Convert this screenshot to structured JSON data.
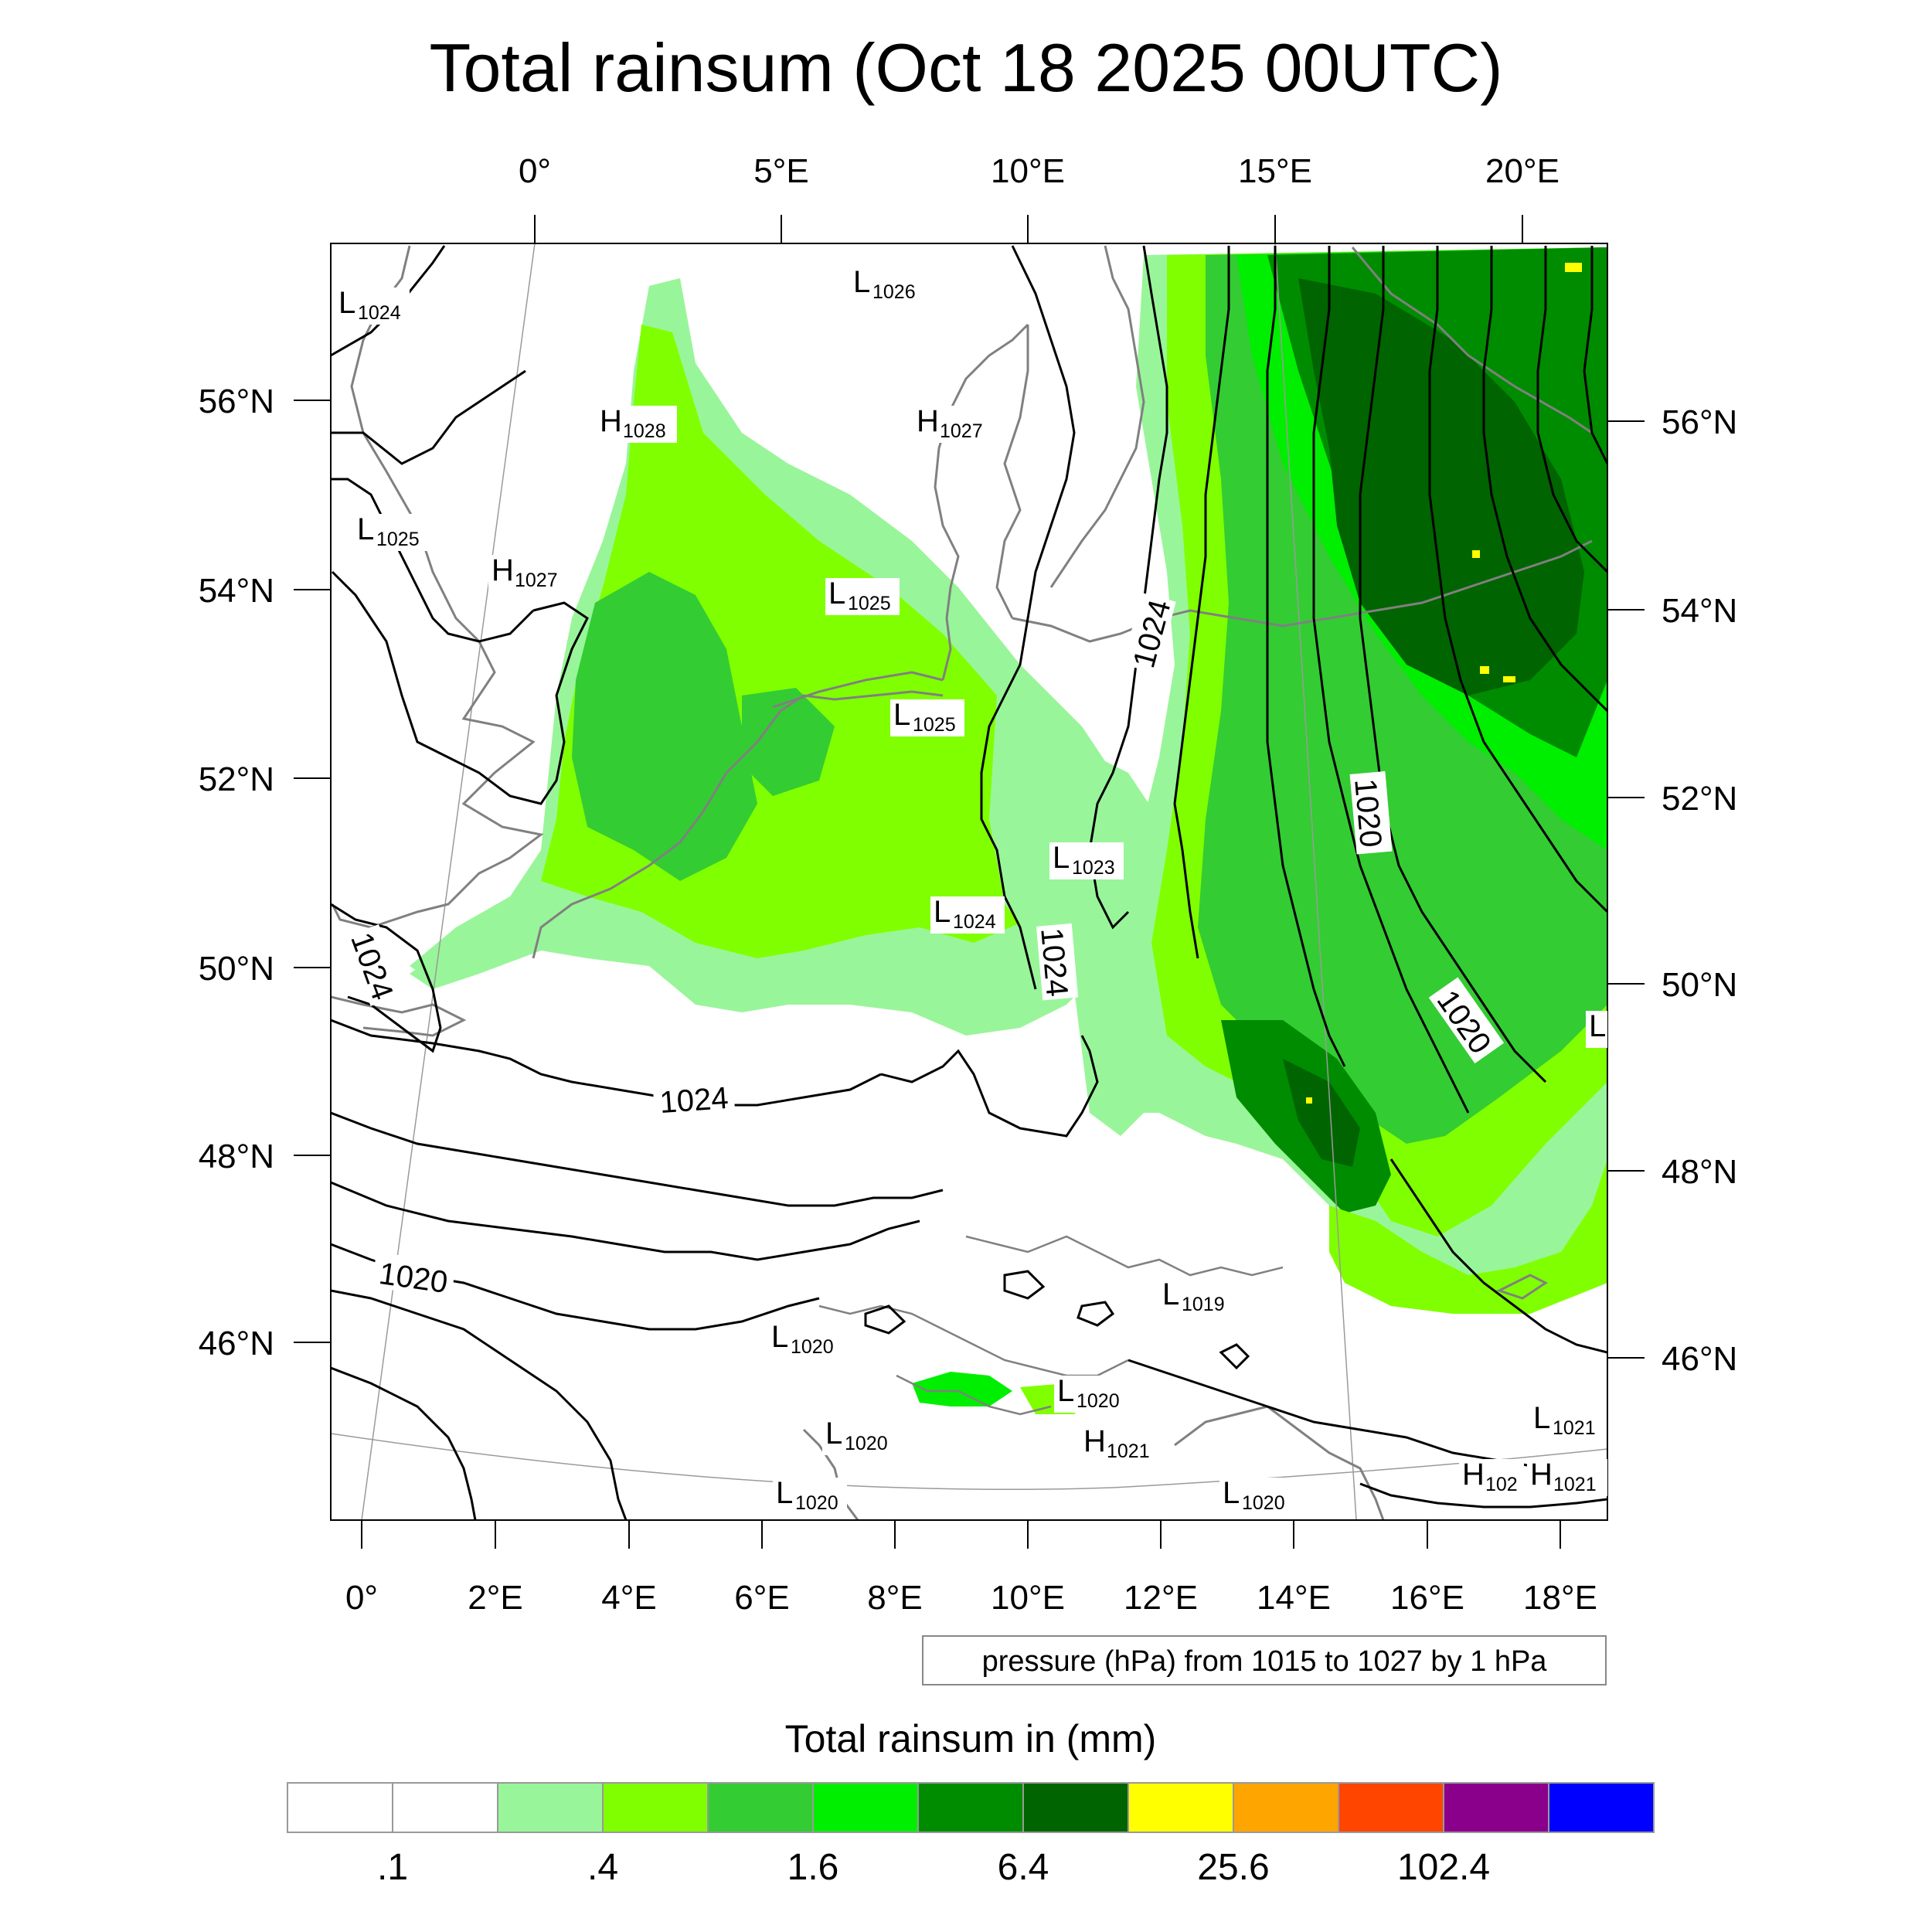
{
  "title": "Total rainsum (Oct 18 2025 00UTC)",
  "colors": {
    "coast": "#808080",
    "isobar": "#000000",
    "rain_bins": [
      "#ffffff",
      "#ffffff",
      "#99f599",
      "#80ff00",
      "#33cc33",
      "#00ee00",
      "#008c00",
      "#006400",
      "#ffff00",
      "#ffa500",
      "#ff4500",
      "#8b008b",
      "#0000ff"
    ]
  },
  "axes": {
    "top_lon_labels": [
      "0°",
      "5°E",
      "10°E",
      "15°E",
      "20°E"
    ],
    "bottom_lon_labels": [
      "0°",
      "2°E",
      "4°E",
      "6°E",
      "8°E",
      "10°E",
      "12°E",
      "14°E",
      "16°E",
      "18°E"
    ],
    "left_lat_labels": [
      "56°N",
      "54°N",
      "52°N",
      "50°N",
      "48°N",
      "46°N"
    ],
    "right_lat_labels": [
      "56°N",
      "54°N",
      "52°N",
      "50°N",
      "48°N",
      "46°N"
    ]
  },
  "pressure_centers": [
    {
      "type": "L",
      "value": "1024"
    },
    {
      "type": "L",
      "value": "1026"
    },
    {
      "type": "H",
      "value": "1028"
    },
    {
      "type": "H",
      "value": "1027"
    },
    {
      "type": "L",
      "value": "1025"
    },
    {
      "type": "H",
      "value": "1027"
    },
    {
      "type": "L",
      "value": "1025"
    },
    {
      "type": "L",
      "value": "1025"
    },
    {
      "type": "L",
      "value": "1023"
    },
    {
      "type": "L",
      "value": "1024"
    },
    {
      "type": "L",
      "value": "1019"
    },
    {
      "type": "L",
      "value": "1020"
    },
    {
      "type": "L",
      "value": "1020"
    },
    {
      "type": "L",
      "value": "1020"
    },
    {
      "type": "H",
      "value": "1021"
    },
    {
      "type": "L",
      "value": "1020"
    },
    {
      "type": "L",
      "value": "1020"
    },
    {
      "type": "L",
      "value": "1021"
    },
    {
      "type": "H",
      "value": "102"
    },
    {
      "type": "H",
      "value": "1021"
    },
    {
      "type": "L",
      "value": ""
    }
  ],
  "contour_labels": [
    "1024",
    "1024",
    "1024",
    "1024",
    "1020",
    "1020",
    "1020"
  ],
  "info_box": "pressure (hPa) from 1015 to 1027 by 1 hPa",
  "legend": {
    "title": "Total rainsum in (mm)",
    "labels": [
      ".1",
      ".4",
      "1.6",
      "6.4",
      "25.6",
      "102.4"
    ]
  }
}
